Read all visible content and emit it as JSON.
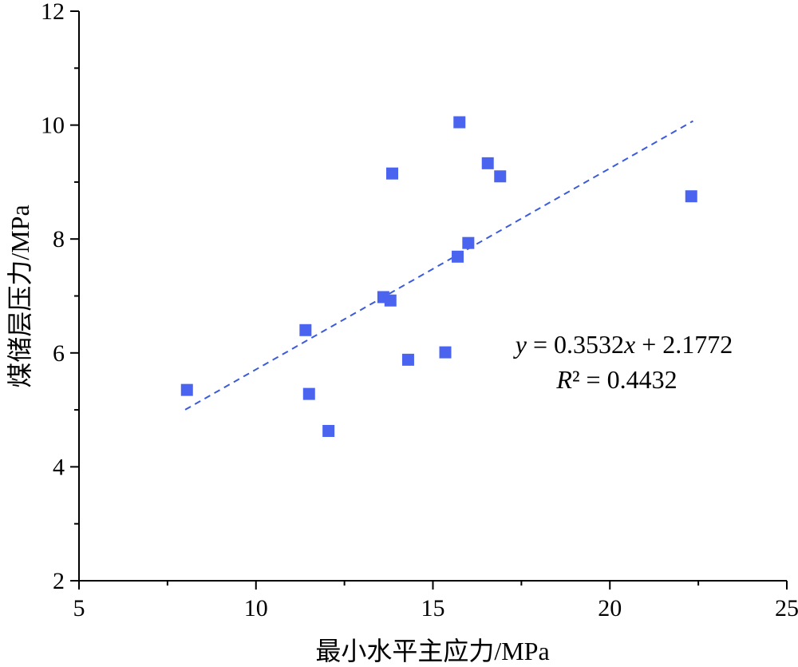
{
  "chart_data": {
    "type": "scatter",
    "xlabel": "最小水平主应力/MPa",
    "ylabel": "煤储层压力/MPa",
    "xlim": [
      5,
      25
    ],
    "ylim": [
      2,
      12
    ],
    "x_ticks": [
      "5",
      "10",
      "15",
      "20",
      "25"
    ],
    "y_ticks": [
      "2",
      "4",
      "6",
      "8",
      "10",
      "12"
    ],
    "grid": false,
    "marker": "square",
    "marker_color": "#4a64f0",
    "trend_color": "#3b5bdb",
    "series": [
      {
        "points": [
          {
            "x": 8.05,
            "y": 5.35
          },
          {
            "x": 11.4,
            "y": 6.4
          },
          {
            "x": 11.5,
            "y": 5.28
          },
          {
            "x": 12.05,
            "y": 4.63
          },
          {
            "x": 13.6,
            "y": 6.98
          },
          {
            "x": 13.8,
            "y": 6.92
          },
          {
            "x": 13.85,
            "y": 9.15
          },
          {
            "x": 14.3,
            "y": 5.88
          },
          {
            "x": 15.35,
            "y": 6.01
          },
          {
            "x": 15.7,
            "y": 7.69
          },
          {
            "x": 15.75,
            "y": 10.05
          },
          {
            "x": 16.0,
            "y": 7.93
          },
          {
            "x": 16.55,
            "y": 9.33
          },
          {
            "x": 16.9,
            "y": 9.1
          },
          {
            "x": 22.3,
            "y": 8.75
          }
        ]
      }
    ],
    "trendline": {
      "slope": 0.3532,
      "intercept": 2.1772,
      "x_range": [
        8.0,
        22.35
      ],
      "style": "dashed"
    },
    "equation": {
      "y_var": "y",
      "eq_middle": " = 0.3532",
      "x_var": "x",
      "eq_end": " + 2.1772",
      "r_var": "R",
      "r_rest": "² = 0.4432"
    }
  }
}
